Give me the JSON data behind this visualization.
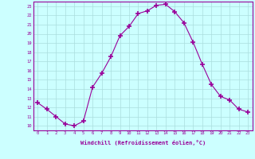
{
  "x": [
    0,
    1,
    2,
    3,
    4,
    5,
    6,
    7,
    8,
    9,
    10,
    11,
    12,
    13,
    14,
    15,
    16,
    17,
    18,
    19,
    20,
    21,
    22,
    23
  ],
  "y": [
    12.5,
    11.8,
    11.0,
    10.2,
    10.0,
    10.5,
    14.2,
    15.7,
    17.5,
    19.8,
    20.8,
    22.2,
    22.5,
    23.1,
    23.2,
    22.4,
    21.2,
    19.1,
    16.7,
    14.5,
    13.2,
    12.8,
    11.8,
    11.5
  ],
  "line_color": "#990099",
  "marker": "+",
  "marker_size": 4,
  "bg_color": "#ccffff",
  "grid_color": "#aadddd",
  "xlabel": "Windchill (Refroidissement éolien,°C)",
  "xlim": [
    -0.5,
    23.5
  ],
  "ylim": [
    9.5,
    23.5
  ],
  "yticks": [
    10,
    11,
    12,
    13,
    14,
    15,
    16,
    17,
    18,
    19,
    20,
    21,
    22,
    23
  ],
  "xticks": [
    0,
    1,
    2,
    3,
    4,
    5,
    6,
    7,
    8,
    9,
    10,
    11,
    12,
    13,
    14,
    15,
    16,
    17,
    18,
    19,
    20,
    21,
    22,
    23
  ]
}
